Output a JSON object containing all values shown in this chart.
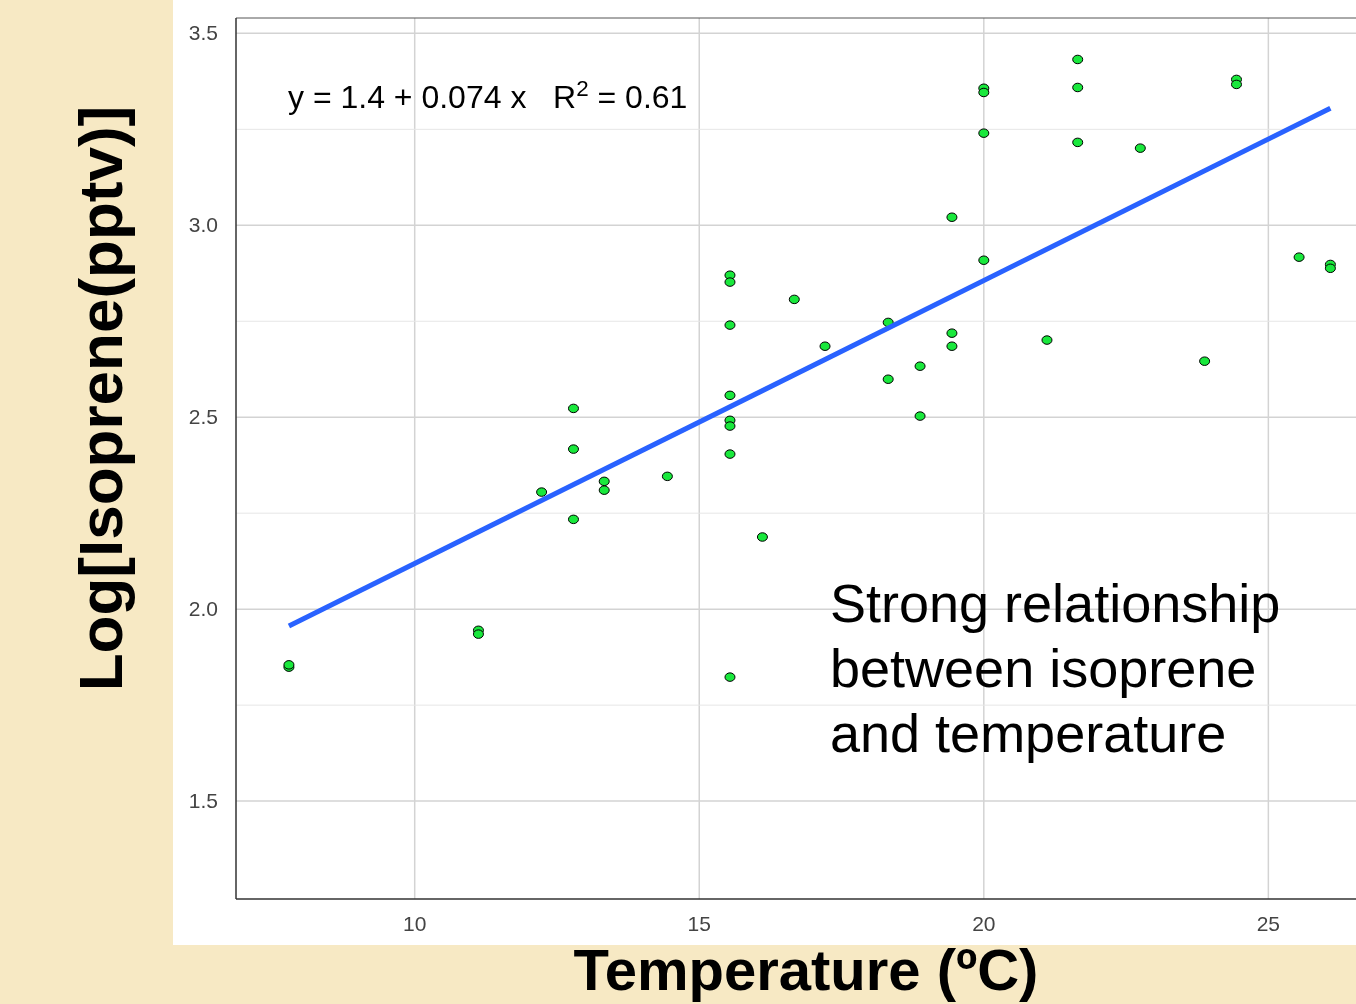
{
  "chart_data": {
    "type": "scatter",
    "xlabel": "Temperature (ºC)",
    "ylabel": "Log[Isoprene(pptv)]",
    "xlim": [
      6.86,
      26.54
    ],
    "ylim": [
      1.245,
      3.54
    ],
    "xticks": [
      10,
      15,
      20,
      25
    ],
    "yticks": [
      {
        "value": 1.5,
        "label": "1.5"
      },
      {
        "value": 2,
        "label": "2.0"
      },
      {
        "value": 2.5,
        "label": "2.5"
      },
      {
        "value": 3,
        "label": "3.0"
      },
      {
        "value": 3.5,
        "label": "3.5"
      }
    ],
    "grid": true,
    "annotations": [
      "y = 1.4 + 0.074 x   R$^{2}$ = 0.61",
      "Strong relationship between isoprene and temperature"
    ],
    "series": [
      {
        "marker": "circle",
        "color": "#19e83c",
        "x": [
          7.79,
          7.79,
          11.12,
          11.12,
          12.23,
          12.79,
          12.79,
          12.79,
          13.33,
          13.33,
          14.44,
          15.54,
          15.54,
          15.54,
          15.54,
          15.54,
          15.54,
          15.54,
          15.54,
          16.11,
          16.67,
          17.21,
          18.32,
          18.32,
          18.88,
          18.88,
          19.44,
          19.44,
          19.44,
          20.0,
          20.0,
          20.0,
          20.0,
          21.11,
          21.65,
          21.65,
          21.65,
          22.75,
          23.88,
          24.44,
          24.44,
          25.54,
          26.09,
          26.09
        ],
        "values": [
          1.849,
          1.855,
          1.945,
          1.935,
          2.305,
          2.523,
          2.417,
          2.234,
          2.333,
          2.31,
          2.346,
          2.87,
          2.852,
          2.74,
          2.557,
          2.492,
          2.477,
          2.404,
          1.823,
          2.188,
          2.807,
          2.685,
          2.747,
          2.599,
          2.633,
          2.503,
          3.021,
          2.719,
          2.685,
          3.357,
          3.346,
          3.24,
          2.909,
          2.701,
          3.432,
          3.359,
          3.216,
          3.201,
          2.646,
          3.38,
          3.367,
          2.917,
          2.898,
          2.888
        ]
      },
      {
        "type": "line",
        "marker": "none",
        "color": "#2962ff",
        "x": [
          7.79,
          26.09
        ],
        "values": [
          1.956,
          3.305
        ]
      }
    ]
  }
}
